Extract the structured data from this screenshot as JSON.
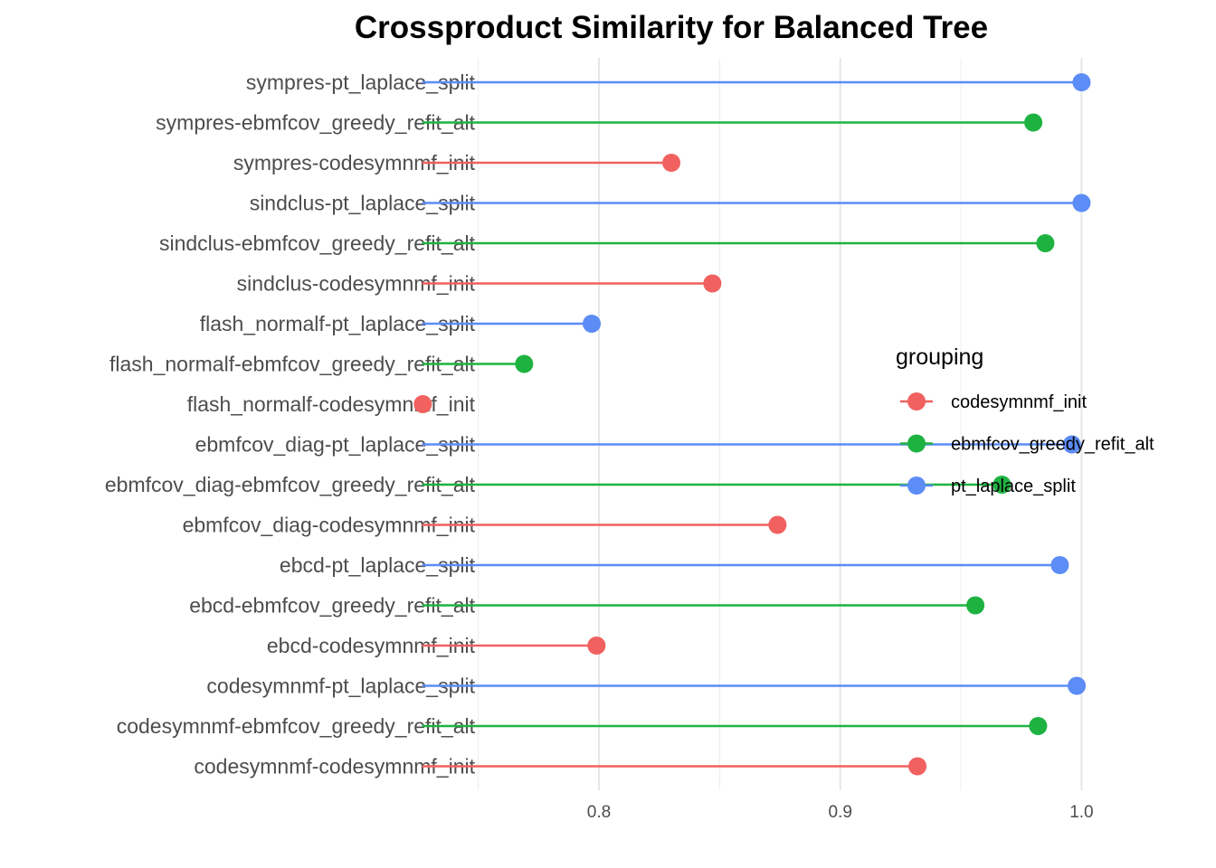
{
  "chart_data": {
    "type": "lollipop",
    "title": "Crossproduct Similarity for Balanced Tree",
    "xlabel": "",
    "ylabel": "",
    "xlim": [
      0.7267,
      1.0
    ],
    "x_ticks": [
      "0.8",
      "0.9",
      "1.0"
    ],
    "x_tick_values": [
      0.8,
      0.9,
      1.0
    ],
    "x_minor_gridlines": [
      0.75,
      0.85,
      0.95
    ],
    "grid": true,
    "legend": {
      "title": "grouping",
      "placement": "right",
      "entries": [
        "codesymnmf_init",
        "ebmfcov_greedy_refit_alt",
        "pt_laplace_split"
      ]
    },
    "colors": {
      "codesymnmf_init": "#F0615F",
      "ebmfcov_greedy_refit_alt": "#1EB341",
      "pt_laplace_split": "#5C8CF5"
    },
    "points": [
      {
        "label": "sympres-pt_laplace_split",
        "group": "pt_laplace_split",
        "value": 1.0
      },
      {
        "label": "sympres-ebmfcov_greedy_refit_alt",
        "group": "ebmfcov_greedy_refit_alt",
        "value": 0.98
      },
      {
        "label": "sympres-codesymnmf_init",
        "group": "codesymnmf_init",
        "value": 0.83
      },
      {
        "label": "sindclus-pt_laplace_split",
        "group": "pt_laplace_split",
        "value": 1.0
      },
      {
        "label": "sindclus-ebmfcov_greedy_refit_alt",
        "group": "ebmfcov_greedy_refit_alt",
        "value": 0.985
      },
      {
        "label": "sindclus-codesymnmf_init",
        "group": "codesymnmf_init",
        "value": 0.847
      },
      {
        "label": "flash_normalf-pt_laplace_split",
        "group": "pt_laplace_split",
        "value": 0.797
      },
      {
        "label": "flash_normalf-ebmfcov_greedy_refit_alt",
        "group": "ebmfcov_greedy_refit_alt",
        "value": 0.769
      },
      {
        "label": "flash_normalf-codesymnmf_init",
        "group": "codesymnmf_init",
        "value": 0.727
      },
      {
        "label": "ebmfcov_diag-pt_laplace_split",
        "group": "pt_laplace_split",
        "value": 0.996
      },
      {
        "label": "ebmfcov_diag-ebmfcov_greedy_refit_alt",
        "group": "ebmfcov_greedy_refit_alt",
        "value": 0.967
      },
      {
        "label": "ebmfcov_diag-codesymnmf_init",
        "group": "codesymnmf_init",
        "value": 0.874
      },
      {
        "label": "ebcd-pt_laplace_split",
        "group": "pt_laplace_split",
        "value": 0.991
      },
      {
        "label": "ebcd-ebmfcov_greedy_refit_alt",
        "group": "ebmfcov_greedy_refit_alt",
        "value": 0.956
      },
      {
        "label": "ebcd-codesymnmf_init",
        "group": "codesymnmf_init",
        "value": 0.799
      },
      {
        "label": "codesymnmf-pt_laplace_split",
        "group": "pt_laplace_split",
        "value": 0.998
      },
      {
        "label": "codesymnmf-ebmfcov_greedy_refit_alt",
        "group": "ebmfcov_greedy_refit_alt",
        "value": 0.982
      },
      {
        "label": "codesymnmf-codesymnmf_init",
        "group": "codesymnmf_init",
        "value": 0.932
      }
    ]
  }
}
